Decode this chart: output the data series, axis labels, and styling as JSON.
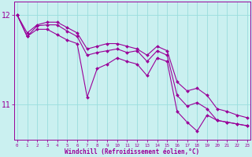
{
  "xlabel": "Windchill (Refroidissement éolien,°C)",
  "background_color": "#caf0f0",
  "line_color": "#990099",
  "grid_color": "#99dddd",
  "hours": [
    0,
    1,
    2,
    3,
    4,
    5,
    6,
    7,
    8,
    9,
    10,
    11,
    12,
    13,
    14,
    15,
    16,
    17,
    18,
    19,
    20,
    21,
    22,
    23
  ],
  "line1": [
    12.0,
    11.76,
    11.88,
    11.89,
    11.89,
    11.82,
    11.76,
    11.55,
    11.58,
    11.6,
    11.62,
    11.58,
    11.6,
    11.48,
    11.6,
    11.55,
    11.1,
    10.98,
    11.02,
    10.95,
    10.82,
    10.8,
    10.78,
    10.76
  ],
  "line2": [
    12.0,
    11.8,
    11.89,
    11.92,
    11.92,
    11.86,
    11.8,
    11.62,
    11.65,
    11.68,
    11.68,
    11.65,
    11.62,
    11.55,
    11.65,
    11.6,
    11.25,
    11.15,
    11.18,
    11.1,
    10.95,
    10.92,
    10.88,
    10.85
  ],
  "line3": [
    12.0,
    11.76,
    11.84,
    11.84,
    11.78,
    11.72,
    11.68,
    11.08,
    11.4,
    11.45,
    11.52,
    11.48,
    11.45,
    11.32,
    11.52,
    11.48,
    10.92,
    10.8,
    10.7,
    10.88,
    10.82,
    10.8,
    10.78,
    10.76
  ],
  "ylim": [
    10.6,
    12.15
  ],
  "ytick_vals": [
    11,
    12
  ],
  "xtick_labels": [
    "0",
    "1",
    "2",
    "3",
    "4",
    "5",
    "6",
    "7",
    "8",
    "9",
    "10",
    "11",
    "12",
    "13",
    "14",
    "15",
    "16",
    "17",
    "18",
    "19",
    "20",
    "21",
    "22",
    "23"
  ]
}
